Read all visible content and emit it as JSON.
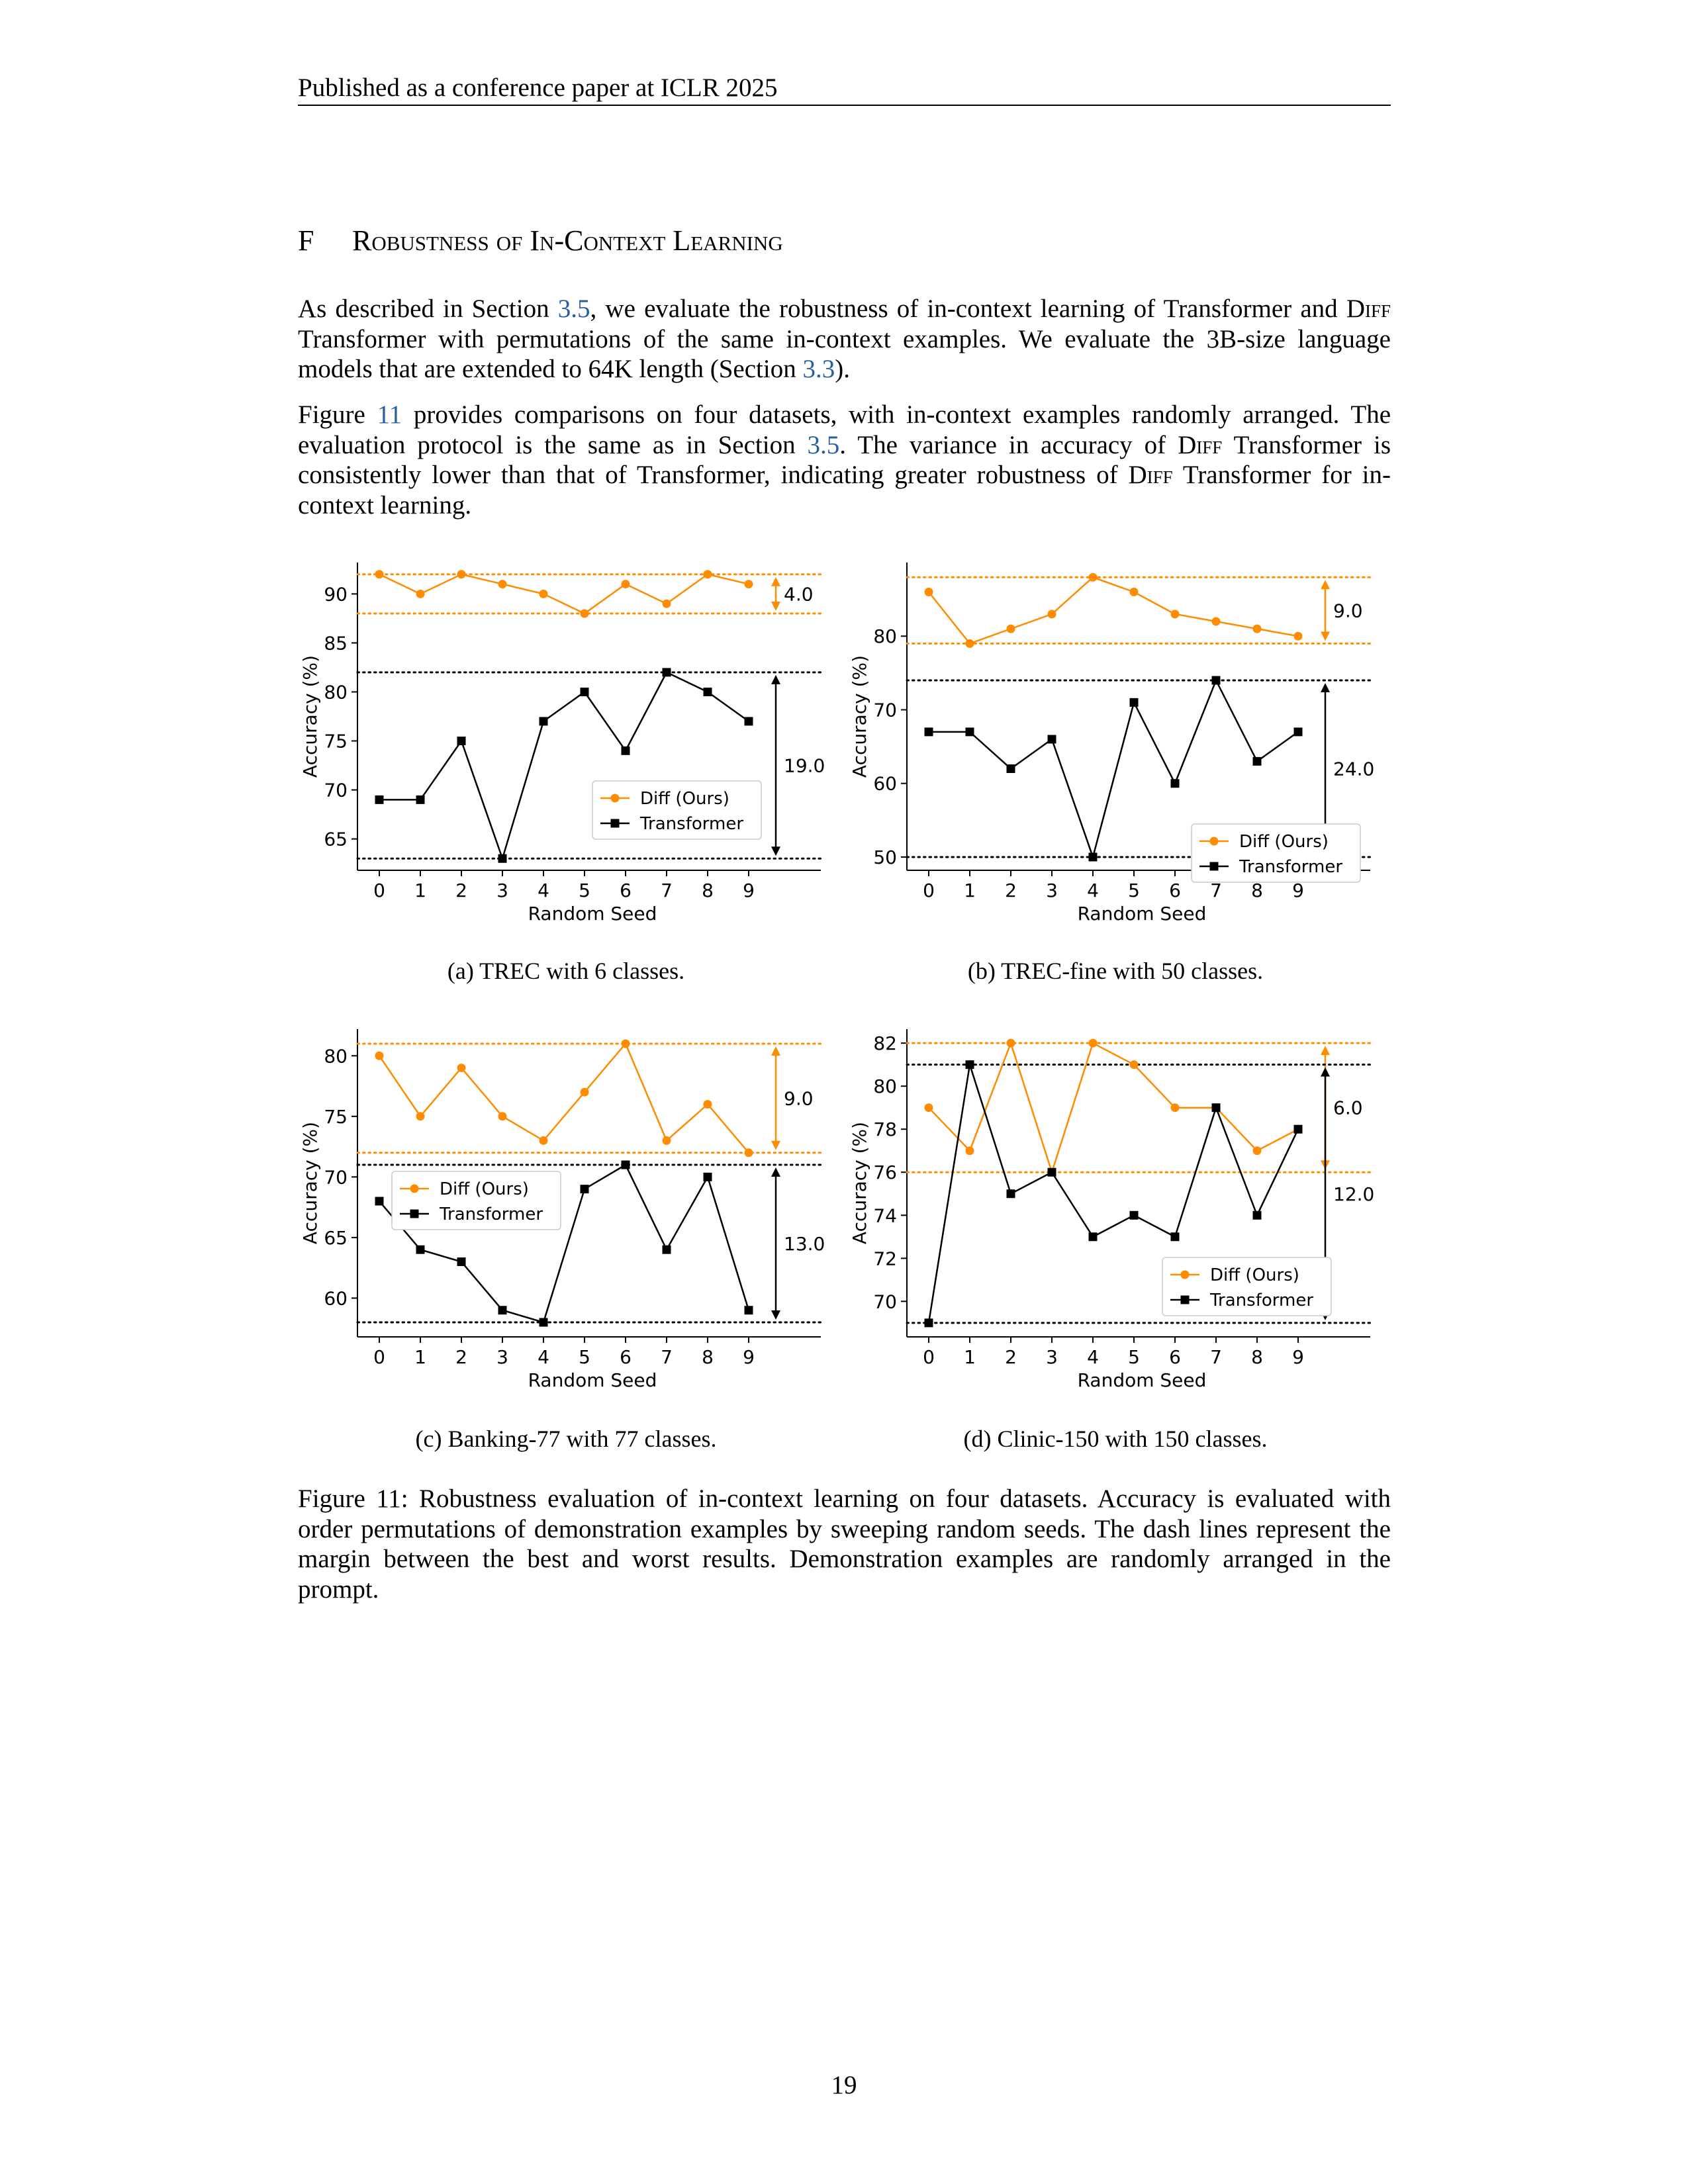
{
  "header": "Published as a conference paper at ICLR 2025",
  "section": {
    "number": "F",
    "title": "Robustness of In-Context Learning"
  },
  "paragraphs": {
    "p1": {
      "t1": "As described in Section ",
      "r1": "3.5",
      "t2": ", we evaluate the robustness of in-context learning of Transformer and ",
      "sc1": "Diff",
      "t3": " Transformer with permutations of the same in-context examples. We evaluate the 3B-size language models that are extended to 64K length (Section ",
      "r2": "3.3",
      "t4": ")."
    },
    "p2": {
      "t1": "Figure ",
      "r1": "11",
      "t2": " provides comparisons on four datasets, with in-context examples randomly arranged. The evaluation protocol is the same as in Section ",
      "r2": "3.5",
      "t3": ". The variance in accuracy of ",
      "sc1": "Diff",
      "t4": " Transformer is consistently lower than that of Transformer, indicating greater robustness of ",
      "sc2": "Diff",
      "t5": " Transformer for in-context learning."
    }
  },
  "colors": {
    "diff": "#ff8c00",
    "transformer": "#000000"
  },
  "chart_data": [
    {
      "type": "line",
      "caption": "(a) TREC with 6 classes.",
      "xlabel": "Random Seed",
      "ylabel": "Accuracy (%)",
      "x": [
        0,
        1,
        2,
        3,
        4,
        5,
        6,
        7,
        8,
        9
      ],
      "ylim": [
        61.8,
        93.2
      ],
      "yticks": [
        65,
        70,
        75,
        80,
        85,
        90
      ],
      "series": [
        {
          "name": "Diff (Ours)",
          "marker": "circle",
          "values": [
            92,
            90,
            92,
            91,
            90,
            88,
            91,
            89,
            92,
            91
          ]
        },
        {
          "name": "Transformer",
          "marker": "square",
          "values": [
            69,
            69,
            75,
            63,
            77,
            80,
            74,
            82,
            80,
            77
          ]
        }
      ],
      "margins": [
        {
          "series": "Diff (Ours)",
          "max": 92,
          "min": 88,
          "label": "4.0"
        },
        {
          "series": "Transformer",
          "max": 82,
          "min": 63,
          "label": "19.0"
        }
      ],
      "legend": "center-right"
    },
    {
      "type": "line",
      "caption": "(b) TREC-fine with 50 classes.",
      "xlabel": "Random Seed",
      "ylabel": "Accuracy (%)",
      "x": [
        0,
        1,
        2,
        3,
        4,
        5,
        6,
        7,
        8,
        9
      ],
      "ylim": [
        48.2,
        90.0
      ],
      "yticks": [
        50,
        60,
        70,
        80
      ],
      "series": [
        {
          "name": "Diff (Ours)",
          "marker": "circle",
          "values": [
            86,
            79,
            81,
            83,
            88,
            86,
            83,
            82,
            81,
            80
          ]
        },
        {
          "name": "Transformer",
          "marker": "square",
          "values": [
            67,
            67,
            62,
            66,
            50,
            71,
            60,
            74,
            63,
            67
          ]
        }
      ],
      "margins": [
        {
          "series": "Diff (Ours)",
          "max": 88,
          "min": 79,
          "label": "9.0"
        },
        {
          "series": "Transformer",
          "max": 74,
          "min": 50,
          "label": "24.0"
        }
      ],
      "legend": "lower-right"
    },
    {
      "type": "line",
      "caption": "(c) Banking-77 with 77 classes.",
      "xlabel": "Random Seed",
      "ylabel": "Accuracy (%)",
      "x": [
        0,
        1,
        2,
        3,
        4,
        5,
        6,
        7,
        8,
        9
      ],
      "ylim": [
        56.8,
        82.2
      ],
      "yticks": [
        60,
        65,
        70,
        75,
        80
      ],
      "series": [
        {
          "name": "Diff (Ours)",
          "marker": "circle",
          "values": [
            80,
            75,
            79,
            75,
            73,
            77,
            81,
            73,
            76,
            72
          ]
        },
        {
          "name": "Transformer",
          "marker": "square",
          "values": [
            68,
            64,
            63,
            59,
            58,
            69,
            71,
            64,
            70,
            59
          ]
        }
      ],
      "margins": [
        {
          "series": "Diff (Ours)",
          "max": 81,
          "min": 72,
          "label": "9.0"
        },
        {
          "series": "Transformer",
          "max": 71,
          "min": 58,
          "label": "13.0"
        }
      ],
      "legend": "center-left"
    },
    {
      "type": "line",
      "caption": "(d) Clinic-150 with 150 classes.",
      "xlabel": "Random Seed",
      "ylabel": "Accuracy (%)",
      "x": [
        0,
        1,
        2,
        3,
        4,
        5,
        6,
        7,
        8,
        9
      ],
      "ylim": [
        68.35,
        82.65
      ],
      "yticks": [
        70,
        72,
        74,
        76,
        78,
        80,
        82
      ],
      "series": [
        {
          "name": "Diff (Ours)",
          "marker": "circle",
          "values": [
            79,
            77,
            82,
            76,
            82,
            81,
            79,
            79,
            77,
            78
          ]
        },
        {
          "name": "Transformer",
          "marker": "square",
          "values": [
            69,
            81,
            75,
            76,
            73,
            74,
            73,
            79,
            74,
            78
          ]
        }
      ],
      "margins": [
        {
          "series": "Diff (Ours)",
          "max": 82,
          "min": 76,
          "label": "6.0"
        },
        {
          "series": "Transformer",
          "max": 81,
          "min": 69,
          "label": "12.0"
        }
      ],
      "legend": "lower-right"
    }
  ],
  "figure_caption": "Figure 11: Robustness evaluation of in-context learning on four datasets. Accuracy is evaluated with order permutations of demonstration examples by sweeping random seeds. The dash lines represent the margin between the best and worst results. Demonstration examples are randomly arranged in the prompt.",
  "page_number": "19"
}
